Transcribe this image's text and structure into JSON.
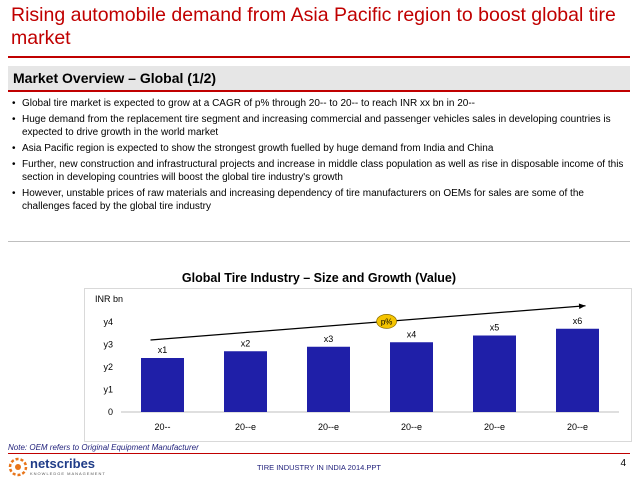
{
  "slide": {
    "title": "Rising automobile demand from Asia Pacific region to boost global tire market",
    "subtitle": "Market Overview – Global (1/2)",
    "bullets": [
      "Global tire market is expected to grow at a CAGR of p% through 20-- to 20-- to reach INR xx bn in 20--",
      "Huge demand from the replacement tire segment and increasing commercial and passenger vehicles sales in developing countries is expected to drive growth in the world market",
      "Asia Pacific region is expected to show the strongest growth fuelled by huge demand from India and China",
      "Further, new construction and infrastructural projects and increase in middle class population as well as rise in disposable income of this section in developing countries will boost the global tire industry's growth",
      "However, unstable prices of raw materials and increasing dependency of tire manufacturers on OEMs for sales are some of the challenges faced by the global tire industry"
    ],
    "note": "Note: OEM refers to Original Equipment Manufacturer",
    "footer": "TIRE INDUSTRY IN INDIA 2014.PPT",
    "page_number": "4",
    "logo_text": "netscribes",
    "logo_tagline": "KNOWLEDGE MANAGEMENT"
  },
  "chart_data": {
    "type": "bar",
    "title": "Global Tire Industry – Size and Growth (Value)",
    "ylabel": "INR bn",
    "categories": [
      "20--",
      "20--e",
      "20--e",
      "20--e",
      "20--e",
      "20--e"
    ],
    "values": [
      2.4,
      2.7,
      2.9,
      3.1,
      3.4,
      3.7
    ],
    "data_labels": [
      "x1",
      "x2",
      "x3",
      "x4",
      "x5",
      "x6"
    ],
    "y_ticks": [
      0,
      1,
      2,
      3,
      4
    ],
    "y_tick_labels": [
      "0",
      "y1",
      "y2",
      "y3",
      "y4"
    ],
    "ylim": [
      0,
      4
    ],
    "growth_label": "p%",
    "bar_color": "#1f1fa8",
    "growth_badge_color": "#f5c400"
  }
}
